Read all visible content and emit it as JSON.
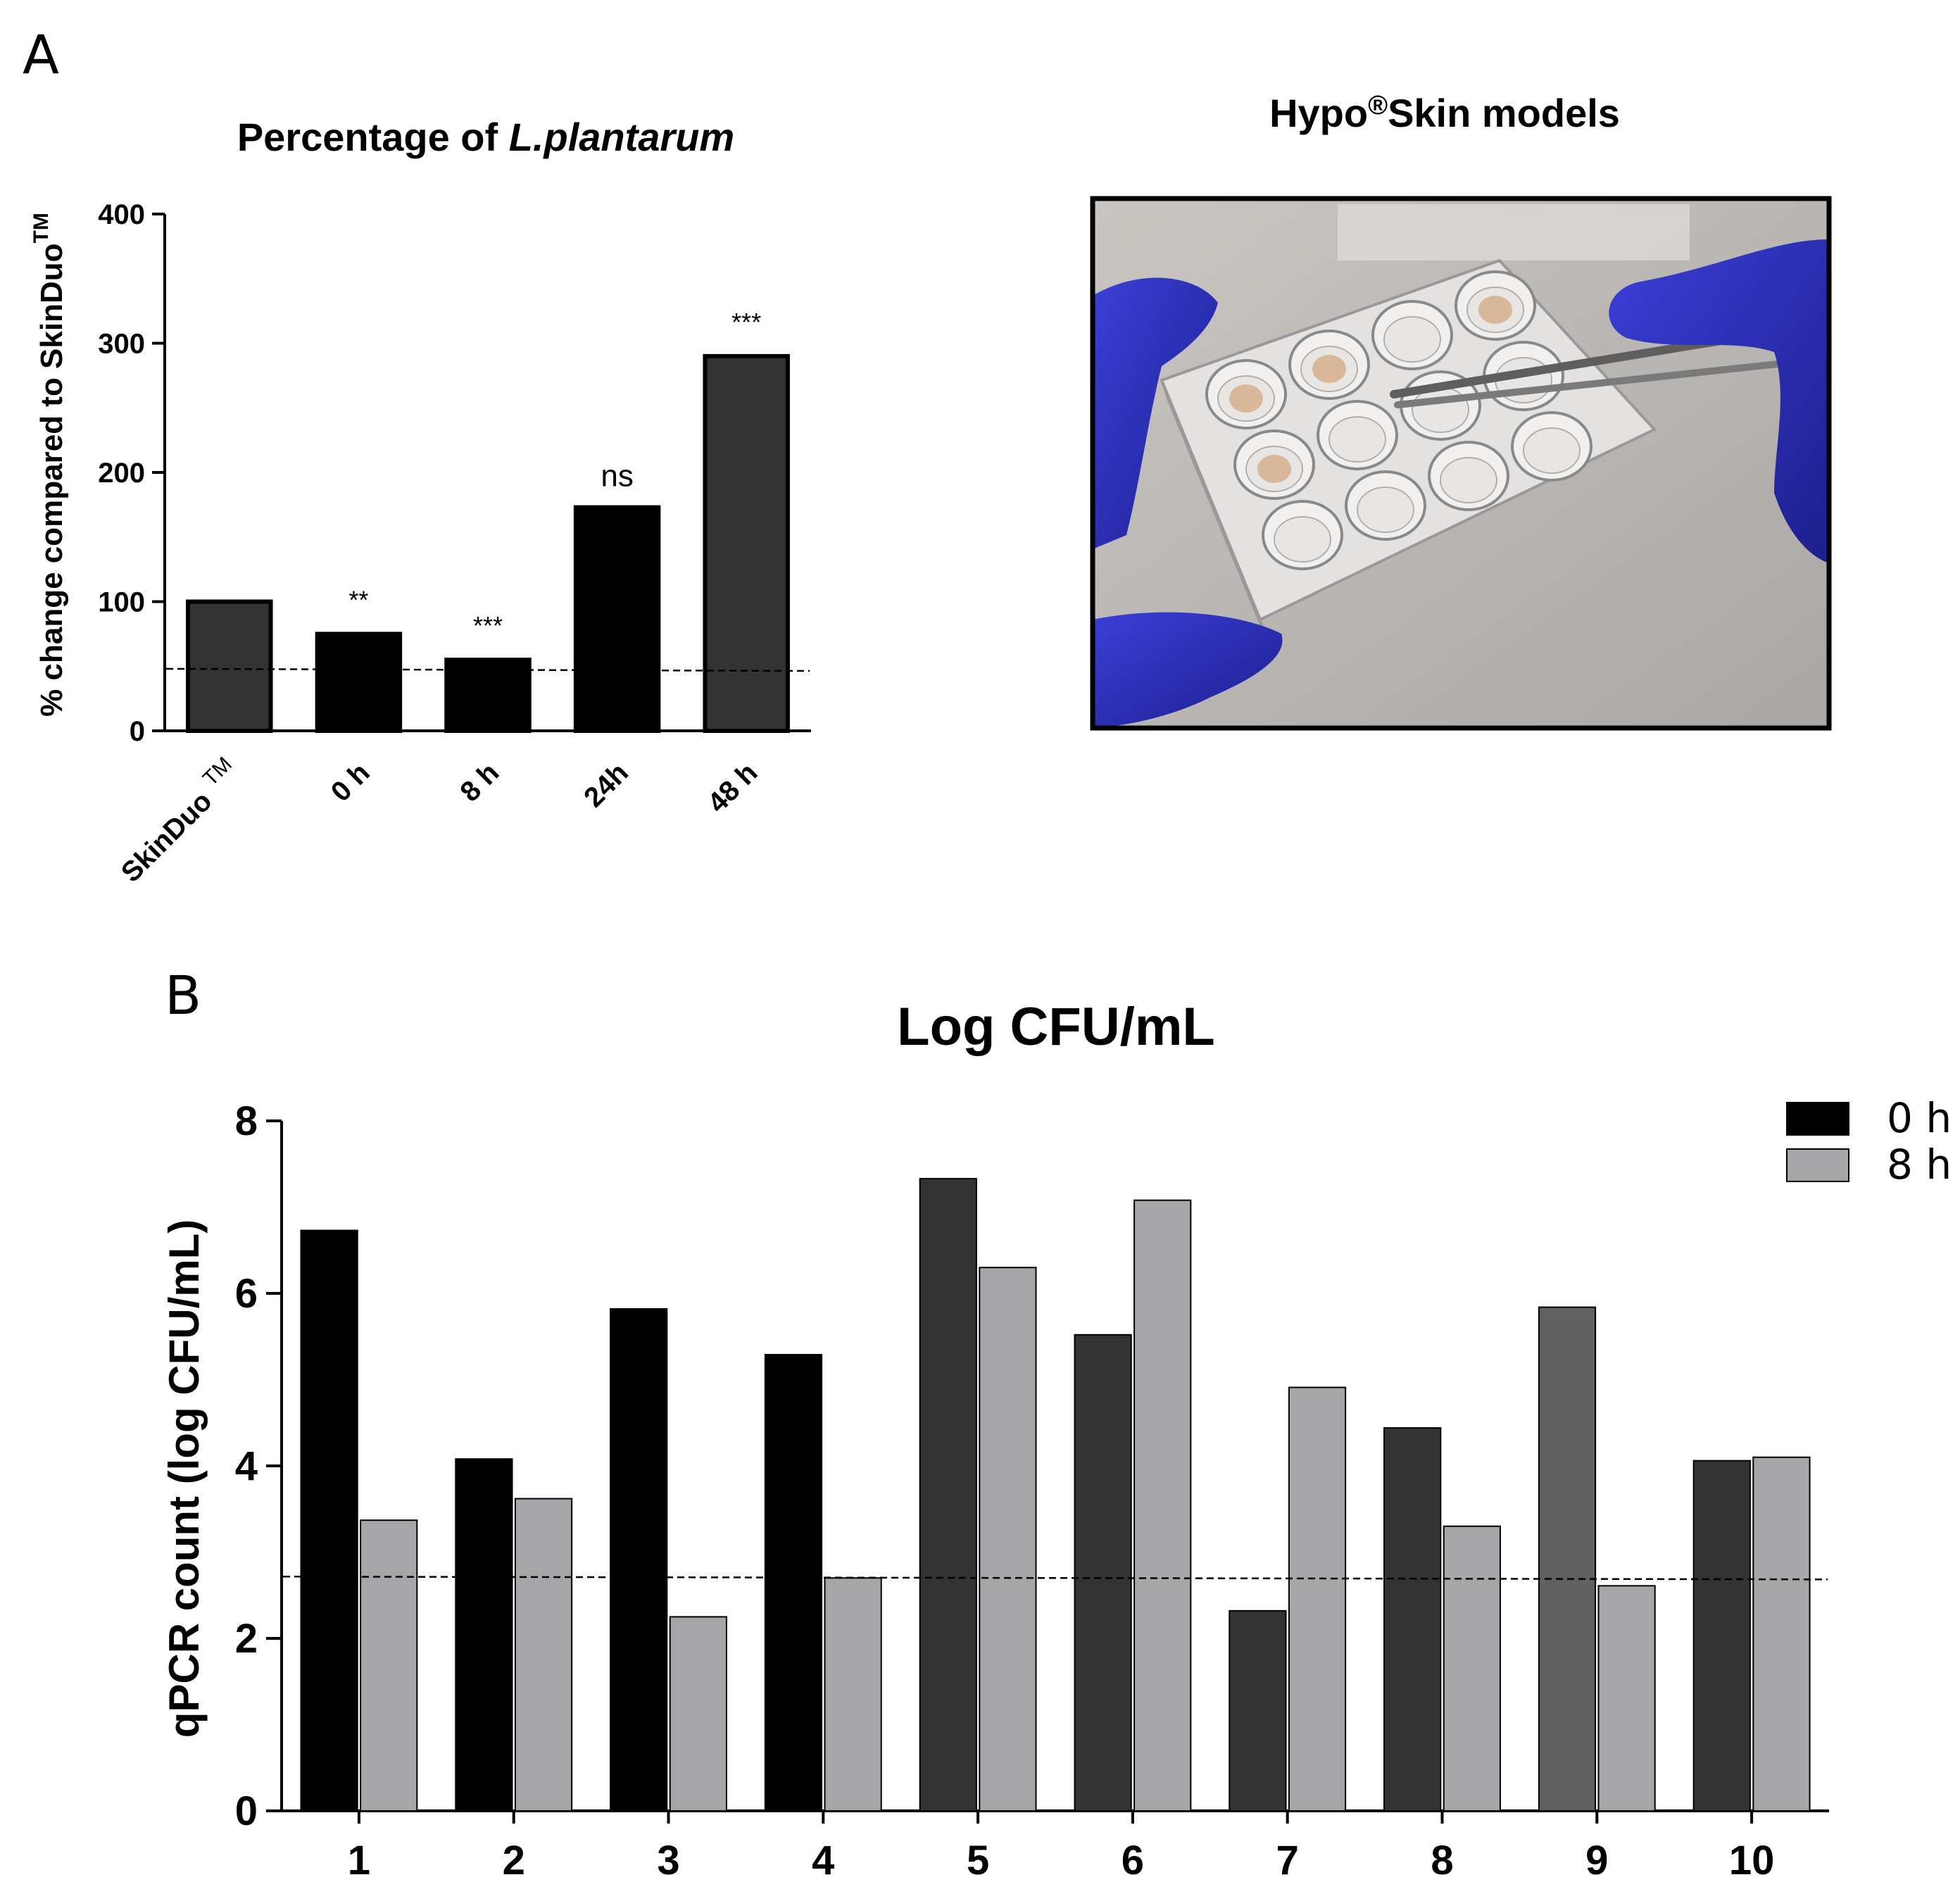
{
  "panel_a_label": "A",
  "panel_b_label": "B",
  "photo": {
    "title_pre": "Hypo",
    "title_reg": "®",
    "title_post": "Skin models"
  },
  "chart_data": [
    {
      "type": "bar",
      "title_pre": "Percentage of ",
      "title_italic": "L.plantarum",
      "ylabel_pre": "% change compared to SkinDuo",
      "ylabel_sup": "TM",
      "ylim": [
        0,
        400
      ],
      "yticks": [
        0,
        100,
        200,
        300,
        400
      ],
      "categories": [
        "SkinDuo",
        "0 h",
        "8 h",
        "24h",
        "48 h"
      ],
      "category_sup": [
        "TM",
        "",
        "",
        "",
        ""
      ],
      "values": [
        100,
        75,
        55,
        173,
        290
      ],
      "significance": [
        "",
        "**",
        "***",
        "ns",
        "***"
      ],
      "threshold": 48,
      "bar_colors": [
        "#333333",
        "#000000",
        "#000000",
        "#000000",
        "#333333"
      ],
      "grid": false
    },
    {
      "type": "bar",
      "title": "Log CFU/mL",
      "ylabel": "qPCR count (log CFU/mL)",
      "ylim": [
        0,
        8
      ],
      "yticks": [
        0,
        2,
        4,
        6,
        8
      ],
      "categories": [
        "1",
        "2",
        "3",
        "4",
        "5",
        "6",
        "7",
        "8",
        "9",
        "10"
      ],
      "series": [
        {
          "name": "0 h",
          "values": [
            6.73,
            4.08,
            5.82,
            5.29,
            7.33,
            5.52,
            2.32,
            4.44,
            5.84,
            4.06
          ],
          "colors": [
            "#000000",
            "#000000",
            "#000000",
            "#000000",
            "#333333",
            "#333333",
            "#333333",
            "#333333",
            "#606060",
            "#333333"
          ]
        },
        {
          "name": "8 h",
          "values": [
            3.37,
            3.62,
            2.25,
            2.7,
            6.3,
            7.08,
            4.91,
            3.3,
            2.61,
            4.1
          ],
          "colors": [
            "#a6a6a8",
            "#a6a6a8",
            "#a6a6a8",
            "#a6a6a8",
            "#a6a6a8",
            "#a6a6a8",
            "#a6a6a8",
            "#a6a6a8",
            "#a6a6a8",
            "#a6a6a8"
          ]
        }
      ],
      "threshold": 2.7,
      "legend": "top-right",
      "legend_colors": [
        "#000000",
        "#a6a6a8"
      ],
      "grid": false
    }
  ]
}
